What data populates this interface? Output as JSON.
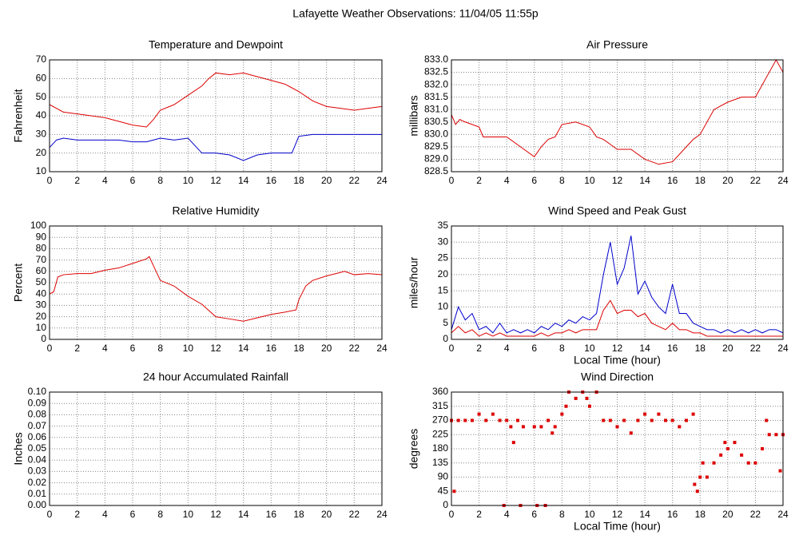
{
  "title": "Lafayette Weather Observations: 11/04/05 11:55p",
  "chart_data": [
    {
      "type": "line",
      "title": "Temperature and Dewpoint",
      "ylabel": "Fahrenheit",
      "x": [
        0,
        0.5,
        1,
        2,
        3,
        4,
        5,
        6,
        7,
        7.5,
        8,
        9,
        10,
        11,
        11.5,
        12,
        13,
        14,
        15,
        16,
        17,
        17.5,
        18,
        19,
        20,
        21,
        22,
        23,
        24
      ],
      "series": [
        {
          "color": "#dd0000",
          "values": [
            46,
            44,
            42,
            41,
            40,
            39,
            37,
            35,
            34,
            38,
            43,
            46,
            51,
            56,
            60,
            63,
            62,
            63,
            61,
            59,
            57,
            55,
            53,
            48,
            45,
            44,
            43,
            44,
            45
          ]
        },
        {
          "color": "#0000cc",
          "values": [
            23,
            27,
            28,
            27,
            27,
            27,
            27,
            26,
            26,
            27,
            28,
            27,
            28,
            20,
            20,
            20,
            19,
            16,
            19,
            20,
            20,
            20,
            29,
            30,
            30,
            30,
            30,
            30,
            30
          ]
        }
      ],
      "xlim": [
        0,
        24
      ],
      "xticks": [
        0,
        2,
        4,
        6,
        8,
        10,
        12,
        14,
        16,
        18,
        20,
        22,
        24
      ],
      "ylim": [
        10,
        70
      ],
      "yticks": [
        10,
        20,
        30,
        40,
        50,
        60,
        70
      ],
      "grid": true
    },
    {
      "type": "line",
      "title": "Air Pressure",
      "ylabel": "millibars",
      "x": [
        0,
        0.3,
        0.6,
        1,
        2,
        2.3,
        3,
        4,
        5,
        6,
        6.5,
        7,
        7.5,
        8,
        9,
        10,
        10.5,
        11,
        12,
        13,
        14,
        15,
        16,
        17,
        17.5,
        18,
        19,
        20,
        21,
        22,
        22.5,
        23,
        23.5,
        24
      ],
      "series": [
        {
          "color": "#dd0000",
          "values": [
            830.8,
            830.4,
            830.6,
            830.5,
            830.3,
            829.9,
            829.9,
            829.9,
            829.5,
            829.1,
            829.5,
            829.8,
            829.9,
            830.4,
            830.5,
            830.3,
            829.9,
            829.8,
            829.4,
            829.4,
            829.0,
            828.8,
            828.9,
            829.5,
            829.8,
            830.0,
            831.0,
            831.3,
            831.5,
            831.5,
            832.0,
            832.5,
            833.0,
            832.5
          ]
        }
      ],
      "xlim": [
        0,
        24
      ],
      "xticks": [
        0,
        2,
        4,
        6,
        8,
        10,
        12,
        14,
        16,
        18,
        20,
        22,
        24
      ],
      "ylim": [
        828.5,
        833
      ],
      "yticks": [
        828.5,
        {
          "value": 829,
          "label": "829.0"
        },
        829.5,
        {
          "value": 830,
          "label": "830.0"
        },
        830.5,
        {
          "value": 831,
          "label": "831.0"
        },
        831.5,
        {
          "value": 832,
          "label": "832.0"
        },
        832.5,
        {
          "value": 833,
          "label": "833.0"
        }
      ],
      "grid": true
    },
    {
      "type": "line",
      "title": "Relative Humidity",
      "ylabel": "Percent",
      "x": [
        0,
        0.3,
        0.6,
        1,
        2,
        3,
        4,
        5,
        6,
        7,
        7.2,
        7.5,
        8,
        9,
        10,
        11,
        12,
        13,
        14,
        15,
        16,
        17,
        17.8,
        18,
        18.5,
        19,
        20,
        21,
        21.3,
        22,
        23,
        24
      ],
      "series": [
        {
          "color": "#dd0000",
          "values": [
            40,
            42,
            55,
            57,
            58,
            58,
            61,
            63,
            67,
            71,
            73,
            65,
            52,
            47,
            38,
            31,
            20,
            18,
            16,
            19,
            22,
            24,
            26,
            35,
            47,
            52,
            56,
            59,
            60,
            57,
            58,
            57
          ]
        }
      ],
      "xlim": [
        0,
        24
      ],
      "xticks": [
        0,
        2,
        4,
        6,
        8,
        10,
        12,
        14,
        16,
        18,
        20,
        22,
        24
      ],
      "ylim": [
        0,
        100
      ],
      "yticks": [
        0,
        10,
        20,
        30,
        40,
        50,
        60,
        70,
        80,
        90,
        100
      ],
      "grid": true
    },
    {
      "type": "line",
      "title": "Wind Speed and Peak Gust",
      "ylabel": "miles/hour",
      "xlabel": "Local Time (hour)",
      "x": [
        0,
        0.5,
        1,
        1.5,
        2,
        2.5,
        3,
        3.5,
        4,
        4.5,
        5,
        5.5,
        6,
        6.5,
        7,
        7.5,
        8,
        8.5,
        9,
        9.5,
        10,
        10.5,
        11,
        11.5,
        12,
        12.5,
        13,
        13.5,
        14,
        14.5,
        15,
        15.5,
        16,
        16.5,
        17,
        17.5,
        18,
        18.5,
        19,
        19.5,
        20,
        20.5,
        21,
        21.5,
        22,
        22.5,
        23,
        23.5,
        24
      ],
      "series": [
        {
          "color": "#0000cc",
          "values": [
            3,
            10,
            6,
            8,
            3,
            4,
            2,
            5,
            2,
            3,
            2,
            3,
            2,
            4,
            3,
            5,
            4,
            6,
            5,
            7,
            6,
            8,
            20,
            30,
            17,
            22,
            32,
            14,
            18,
            13,
            10,
            8,
            17,
            8,
            8,
            5,
            4,
            3,
            3,
            2,
            3,
            2,
            3,
            2,
            3,
            2,
            3,
            3,
            2
          ]
        },
        {
          "color": "#dd0000",
          "values": [
            2,
            4,
            2,
            3,
            1,
            2,
            1,
            2,
            1,
            1,
            1,
            1,
            1,
            2,
            1,
            2,
            2,
            3,
            2,
            3,
            3,
            3,
            9,
            12,
            8,
            9,
            9,
            7,
            8,
            5,
            4,
            3,
            5,
            3,
            3,
            2,
            2,
            1,
            1,
            1,
            1,
            1,
            1,
            1,
            1,
            1,
            1,
            1,
            1
          ]
        }
      ],
      "xlim": [
        0,
        24
      ],
      "xticks": [
        0,
        2,
        4,
        6,
        8,
        10,
        12,
        14,
        16,
        18,
        20,
        22,
        24
      ],
      "ylim": [
        0,
        35
      ],
      "yticks": [
        0,
        5,
        10,
        15,
        20,
        25,
        30,
        35
      ],
      "grid": true
    },
    {
      "type": "line",
      "title": "24 hour Accumulated Rainfall",
      "ylabel": "Inches",
      "x": [
        0,
        24
      ],
      "series": [
        {
          "color": "#dd0000",
          "values": [
            0,
            0
          ]
        }
      ],
      "xlim": [
        0,
        24
      ],
      "xticks": [
        0,
        2,
        4,
        6,
        8,
        10,
        12,
        14,
        16,
        18,
        20,
        22,
        24
      ],
      "ylim": [
        0,
        0.1
      ],
      "yticks": [
        {
          "value": 0,
          "label": "0.00"
        },
        0.01,
        0.02,
        0.03,
        0.04,
        0.05,
        0.06,
        0.07,
        0.08,
        0.09,
        {
          "value": 0.1,
          "label": "0.10"
        }
      ],
      "grid": true
    },
    {
      "type": "scatter",
      "title": "Wind Direction",
      "ylabel": "degrees",
      "xlabel": "Local Time (hour)",
      "x": [
        0,
        0.2,
        0.5,
        1,
        1.5,
        2,
        2.5,
        3,
        3.5,
        3.8,
        4,
        4.3,
        4.5,
        4.8,
        5,
        5.2,
        6,
        6.2,
        6.5,
        6.8,
        7,
        7.3,
        7.5,
        8,
        8.3,
        8.5,
        9,
        9.5,
        9.8,
        10,
        10.5,
        11,
        11.5,
        12,
        12.5,
        13,
        13.5,
        14,
        14.5,
        15,
        15.5,
        16,
        16.5,
        17,
        17.5,
        17.6,
        17.8,
        18,
        18.2,
        18.5,
        19,
        19.5,
        19.8,
        20,
        20.5,
        21,
        21.5,
        22,
        22.5,
        22.8,
        23,
        23.5,
        23.8,
        24
      ],
      "series": [
        {
          "color": "#dd0000",
          "values": [
            270,
            45,
            270,
            270,
            270,
            290,
            270,
            290,
            270,
            0,
            270,
            250,
            200,
            270,
            0,
            250,
            250,
            0,
            250,
            0,
            270,
            230,
            250,
            290,
            315,
            360,
            340,
            360,
            340,
            315,
            360,
            270,
            270,
            250,
            270,
            230,
            270,
            290,
            270,
            290,
            270,
            270,
            250,
            270,
            290,
            67,
            45,
            90,
            135,
            90,
            135,
            160,
            200,
            180,
            200,
            160,
            135,
            135,
            180,
            270,
            225,
            225,
            110,
            225
          ]
        }
      ],
      "xlim": [
        0,
        24
      ],
      "xticks": [
        0,
        2,
        4,
        6,
        8,
        10,
        12,
        14,
        16,
        18,
        20,
        22,
        24
      ],
      "ylim": [
        0,
        360
      ],
      "yticks": [
        0,
        45,
        90,
        135,
        180,
        225,
        270,
        315,
        360
      ],
      "grid": true
    }
  ]
}
